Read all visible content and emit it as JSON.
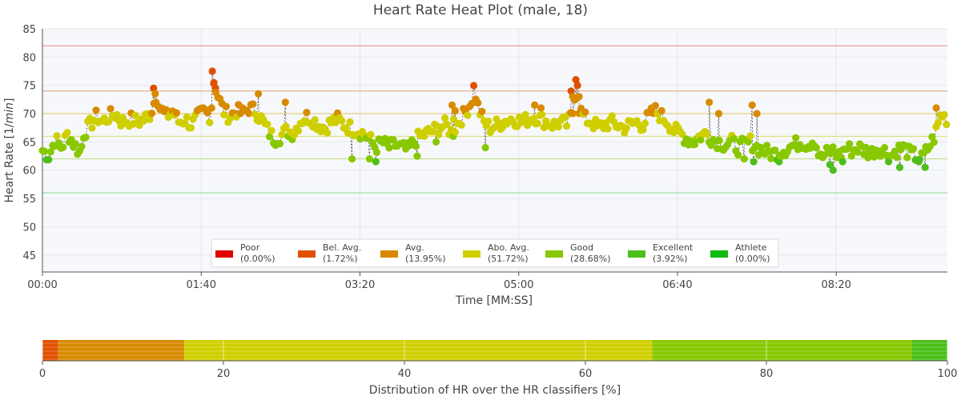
{
  "chart_data": [
    {
      "type": "scatter",
      "title": "Heart Rate Heat Plot (male, 18)",
      "xlabel": "Time [MM:SS]",
      "ylabel_prefix": "Heart Rate [1/",
      "ylabel_unit": "min",
      "ylabel_suffix": "]",
      "x_unit": "seconds",
      "xlim": [
        0,
        570
      ],
      "ylim": [
        42,
        85
      ],
      "x_ticks": [
        0,
        100,
        200,
        300,
        400,
        500
      ],
      "x_tick_labels": [
        "00:00",
        "01:40",
        "03:20",
        "05:00",
        "06:40",
        "08:20"
      ],
      "y_ticks": [
        45,
        50,
        55,
        60,
        65,
        70,
        75,
        80,
        85
      ],
      "grid": true,
      "threshold_lines": [
        {
          "value": 82,
          "color": "#e88a7a"
        },
        {
          "value": 74,
          "color": "#e8a070"
        },
        {
          "value": 70,
          "color": "#e0c060"
        },
        {
          "value": 66,
          "color": "#d6dc6a"
        },
        {
          "value": 62,
          "color": "#b8de7a"
        },
        {
          "value": 56,
          "color": "#90d890"
        }
      ],
      "series_keypoints": [
        [
          0,
          63.5
        ],
        [
          4,
          62.5
        ],
        [
          8,
          65.5
        ],
        [
          12,
          64
        ],
        [
          16,
          66.5
        ],
        [
          20,
          64.5
        ],
        [
          24,
          63
        ],
        [
          26,
          66.5
        ],
        [
          30,
          68
        ],
        [
          34,
          69.5
        ],
        [
          38,
          68.5
        ],
        [
          42,
          69.5
        ],
        [
          46,
          70
        ],
        [
          50,
          68.5
        ],
        [
          56,
          69
        ],
        [
          60,
          68.5
        ],
        [
          64,
          69
        ],
        [
          68,
          70
        ],
        [
          72,
          73.5
        ],
        [
          74,
          71
        ],
        [
          78,
          69.5
        ],
        [
          82,
          70.5
        ],
        [
          86,
          68.5
        ],
        [
          90,
          69
        ],
        [
          94,
          68
        ],
        [
          98,
          69.5
        ],
        [
          102,
          70.5
        ],
        [
          106,
          69.5
        ],
        [
          108,
          76
        ],
        [
          110,
          73.5
        ],
        [
          114,
          70.5
        ],
        [
          118,
          69.5
        ],
        [
          122,
          70.5
        ],
        [
          126,
          70
        ],
        [
          130,
          71
        ],
        [
          134,
          70.5
        ],
        [
          138,
          69
        ],
        [
          142,
          67
        ],
        [
          146,
          65.5
        ],
        [
          150,
          66
        ],
        [
          154,
          67
        ],
        [
          158,
          66.5
        ],
        [
          162,
          68.5
        ],
        [
          166,
          69.5
        ],
        [
          170,
          69
        ],
        [
          174,
          68
        ],
        [
          178,
          67.5
        ],
        [
          182,
          68.5
        ],
        [
          186,
          69
        ],
        [
          190,
          68
        ],
        [
          194,
          67.5
        ],
        [
          198,
          67
        ],
        [
          202,
          66.5
        ],
        [
          206,
          65.5
        ],
        [
          210,
          64
        ],
        [
          214,
          65
        ],
        [
          218,
          64
        ],
        [
          222,
          64.5
        ],
        [
          226,
          64
        ],
        [
          230,
          63.5
        ],
        [
          234,
          65
        ],
        [
          238,
          66
        ],
        [
          242,
          66.5
        ],
        [
          246,
          67
        ],
        [
          250,
          67.5
        ],
        [
          254,
          68
        ],
        [
          258,
          66.5
        ],
        [
          262,
          68.5
        ],
        [
          266,
          70
        ],
        [
          270,
          72
        ],
        [
          272,
          75
        ],
        [
          274,
          71.5
        ],
        [
          278,
          68.5
        ],
        [
          282,
          67.5
        ],
        [
          286,
          68
        ],
        [
          290,
          68.5
        ],
        [
          294,
          69
        ],
        [
          298,
          69
        ],
        [
          302,
          68.5
        ],
        [
          306,
          69
        ],
        [
          310,
          69.5
        ],
        [
          314,
          69
        ],
        [
          318,
          68.5
        ],
        [
          322,
          68
        ],
        [
          326,
          68.5
        ],
        [
          330,
          68
        ],
        [
          334,
          70
        ],
        [
          336,
          75
        ],
        [
          338,
          71
        ],
        [
          342,
          69
        ],
        [
          346,
          68.5
        ],
        [
          350,
          67.5
        ],
        [
          354,
          68
        ],
        [
          358,
          68.5
        ],
        [
          362,
          68
        ],
        [
          366,
          67.5
        ],
        [
          370,
          68
        ],
        [
          374,
          68.5
        ],
        [
          378,
          68
        ],
        [
          382,
          69.5
        ],
        [
          386,
          70.5
        ],
        [
          390,
          69.5
        ],
        [
          394,
          68.5
        ],
        [
          398,
          67
        ],
        [
          402,
          66.5
        ],
        [
          406,
          65.5
        ],
        [
          410,
          65
        ],
        [
          414,
          66
        ],
        [
          418,
          66.5
        ],
        [
          422,
          65.5
        ],
        [
          426,
          65
        ],
        [
          430,
          64.5
        ],
        [
          434,
          65
        ],
        [
          438,
          64
        ],
        [
          442,
          64.5
        ],
        [
          446,
          65
        ],
        [
          450,
          64
        ],
        [
          454,
          63.5
        ],
        [
          458,
          63
        ],
        [
          462,
          63
        ],
        [
          466,
          63.5
        ],
        [
          470,
          64
        ],
        [
          474,
          64.5
        ],
        [
          478,
          65
        ],
        [
          482,
          64.5
        ],
        [
          486,
          65.5
        ],
        [
          490,
          62
        ],
        [
          494,
          63
        ],
        [
          498,
          63.5
        ],
        [
          502,
          62.5
        ],
        [
          506,
          64
        ],
        [
          510,
          63.5
        ],
        [
          514,
          64
        ],
        [
          518,
          63.5
        ],
        [
          522,
          63
        ],
        [
          526,
          64
        ],
        [
          530,
          63.5
        ],
        [
          534,
          62.5
        ],
        [
          538,
          63.5
        ],
        [
          542,
          64
        ],
        [
          546,
          63
        ],
        [
          550,
          62.5
        ],
        [
          554,
          62
        ],
        [
          558,
          64
        ],
        [
          562,
          66
        ],
        [
          566,
          70
        ],
        [
          570,
          69
        ]
      ],
      "peaks": [
        [
          70,
          74.5
        ],
        [
          71,
          73.5
        ],
        [
          107,
          77.5
        ],
        [
          108,
          75.5
        ],
        [
          109,
          74.5
        ],
        [
          136,
          73.5
        ],
        [
          153,
          72
        ],
        [
          258,
          71.5
        ],
        [
          260,
          70.5
        ],
        [
          259,
          69
        ],
        [
          310,
          71.5
        ],
        [
          314,
          71
        ],
        [
          336,
          76
        ],
        [
          337,
          75
        ],
        [
          338,
          73
        ],
        [
          333,
          74
        ],
        [
          334,
          73
        ],
        [
          420,
          72
        ],
        [
          426,
          70
        ],
        [
          447,
          71.5
        ],
        [
          450,
          70
        ],
        [
          563,
          71
        ]
      ],
      "dips": [
        [
          195,
          62
        ],
        [
          206,
          62
        ],
        [
          210,
          61.5
        ],
        [
          236,
          62.5
        ],
        [
          248,
          65
        ],
        [
          279,
          64
        ],
        [
          442,
          62
        ],
        [
          448,
          61.5
        ],
        [
          464,
          61.5
        ],
        [
          496,
          61
        ],
        [
          498,
          60
        ],
        [
          504,
          61.5
        ],
        [
          540,
          60.5
        ],
        [
          552,
          61.5
        ],
        [
          556,
          60.5
        ]
      ],
      "classifiers": [
        {
          "name": "Poor",
          "pct_label": "(0.00%)",
          "color": "#e00000",
          "min": 82
        },
        {
          "name": "Bel. Avg.",
          "pct_label": "(1.72%)",
          "color": "#e05000",
          "min": 74
        },
        {
          "name": "Avg.",
          "pct_label": "(13.95%)",
          "color": "#d88a00",
          "min": 70
        },
        {
          "name": "Abo. Avg.",
          "pct_label": "(51.72%)",
          "color": "#cfcf00",
          "min": 66
        },
        {
          "name": "Good",
          "pct_label": "(28.68%)",
          "color": "#88c800",
          "min": 62
        },
        {
          "name": "Excellent",
          "pct_label": "(3.92%)",
          "color": "#4cbf1a",
          "min": 56
        },
        {
          "name": "Athlete",
          "pct_label": "(0.00%)",
          "color": "#10bb10",
          "min": 0
        }
      ],
      "legend_position": "bottom-center"
    },
    {
      "type": "bar",
      "orientation": "horizontal-stacked",
      "xlabel": "Distribution of HR over the HR classifiers [%]",
      "xlim": [
        0,
        100
      ],
      "x_ticks": [
        0,
        20,
        40,
        60,
        80,
        100
      ],
      "segments": [
        {
          "name": "Poor",
          "value": 0.0,
          "color": "#e00000"
        },
        {
          "name": "Bel. Avg.",
          "value": 1.72,
          "color": "#e05000"
        },
        {
          "name": "Avg.",
          "value": 13.95,
          "color": "#d88a00"
        },
        {
          "name": "Abo. Avg.",
          "value": 51.72,
          "color": "#cfcf00"
        },
        {
          "name": "Good",
          "value": 28.68,
          "color": "#88c800"
        },
        {
          "name": "Excellent",
          "value": 3.92,
          "color": "#4cbf1a"
        },
        {
          "name": "Athlete",
          "value": 0.0,
          "color": "#10bb10"
        }
      ]
    }
  ]
}
